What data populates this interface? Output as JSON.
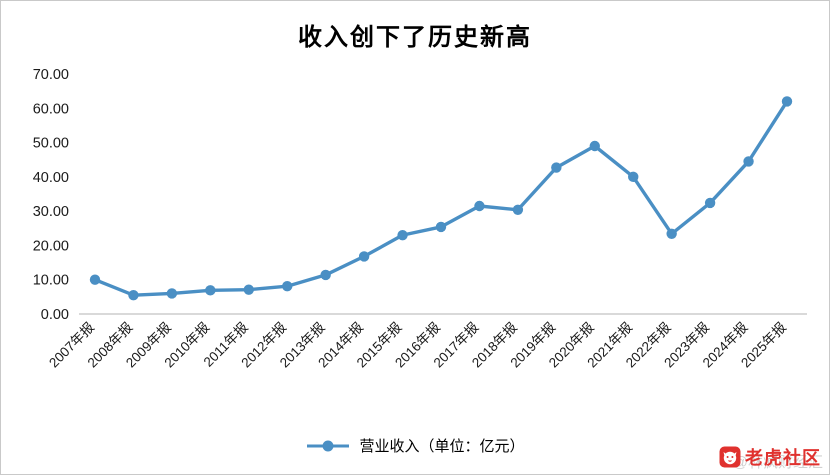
{
  "chart_data": {
    "type": "line",
    "title": "收入创下了历史新高",
    "categories": [
      "2007年报",
      "2008年报",
      "2009年报",
      "2010年报",
      "2011年报",
      "2012年报",
      "2013年报",
      "2014年报",
      "2015年报",
      "2016年报",
      "2017年报",
      "2018年报",
      "2019年报",
      "2020年报",
      "2021年报",
      "2022年报",
      "2023年报",
      "2024年报",
      "2025年报"
    ],
    "series": [
      {
        "name": "营业收入（单位：亿元）",
        "values": [
          10.0,
          5.5,
          6.0,
          6.9,
          7.1,
          8.1,
          11.4,
          16.8,
          23.0,
          25.4,
          31.5,
          30.4,
          42.7,
          49.0,
          40.0,
          23.4,
          32.4,
          44.5,
          62.0
        ]
      }
    ],
    "xlabel": "",
    "ylabel": "",
    "ylim": [
      0,
      70
    ],
    "ytick_step": 10,
    "ytick_format_decimals": 2,
    "grid": false,
    "legend_position": "bottom",
    "line_color": "#4a8fc4"
  },
  "watermark": {
    "brand": "老虎社区",
    "faint": "@林疯财经汇"
  }
}
